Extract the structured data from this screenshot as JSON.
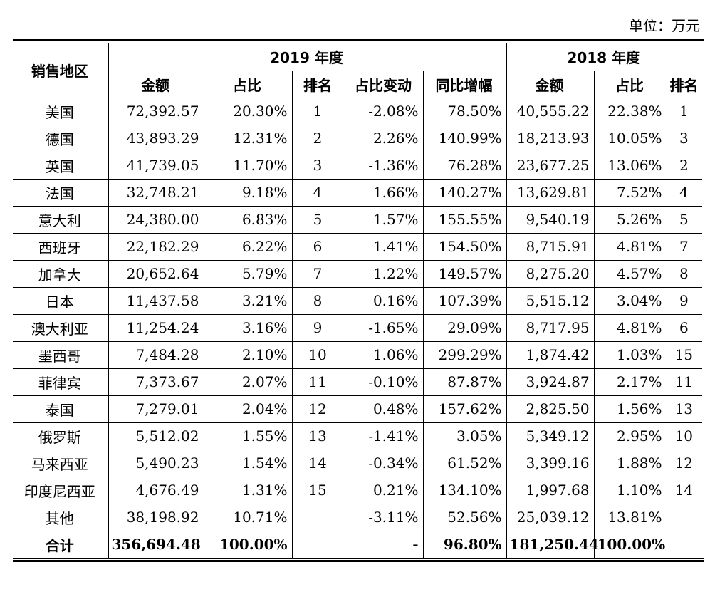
{
  "unit_label": "单位：万元",
  "header": {
    "region": "销售地区",
    "year_2019": "2019 年度",
    "year_2018": "2018 年度",
    "cols_2019": [
      "金额",
      "占比",
      "排名",
      "占比变动",
      "同比增幅"
    ],
    "cols_2018": [
      "金额",
      "占比",
      "排名"
    ]
  },
  "rows": [
    {
      "region": "美国",
      "amt19": "72,392.57",
      "pct19": "20.30%",
      "rank19": "1",
      "chg": "-2.08%",
      "yoy": "78.50%",
      "amt18": "40,555.22",
      "pct18": "22.38%",
      "rank18": "1"
    },
    {
      "region": "德国",
      "amt19": "43,893.29",
      "pct19": "12.31%",
      "rank19": "2",
      "chg": "2.26%",
      "yoy": "140.99%",
      "amt18": "18,213.93",
      "pct18": "10.05%",
      "rank18": "3"
    },
    {
      "region": "英国",
      "amt19": "41,739.05",
      "pct19": "11.70%",
      "rank19": "3",
      "chg": "-1.36%",
      "yoy": "76.28%",
      "amt18": "23,677.25",
      "pct18": "13.06%",
      "rank18": "2"
    },
    {
      "region": "法国",
      "amt19": "32,748.21",
      "pct19": "9.18%",
      "rank19": "4",
      "chg": "1.66%",
      "yoy": "140.27%",
      "amt18": "13,629.81",
      "pct18": "7.52%",
      "rank18": "4"
    },
    {
      "region": "意大利",
      "amt19": "24,380.00",
      "pct19": "6.83%",
      "rank19": "5",
      "chg": "1.57%",
      "yoy": "155.55%",
      "amt18": "9,540.19",
      "pct18": "5.26%",
      "rank18": "5"
    },
    {
      "region": "西班牙",
      "amt19": "22,182.29",
      "pct19": "6.22%",
      "rank19": "6",
      "chg": "1.41%",
      "yoy": "154.50%",
      "amt18": "8,715.91",
      "pct18": "4.81%",
      "rank18": "7"
    },
    {
      "region": "加拿大",
      "amt19": "20,652.64",
      "pct19": "5.79%",
      "rank19": "7",
      "chg": "1.22%",
      "yoy": "149.57%",
      "amt18": "8,275.20",
      "pct18": "4.57%",
      "rank18": "8"
    },
    {
      "region": "日本",
      "amt19": "11,437.58",
      "pct19": "3.21%",
      "rank19": "8",
      "chg": "0.16%",
      "yoy": "107.39%",
      "amt18": "5,515.12",
      "pct18": "3.04%",
      "rank18": "9"
    },
    {
      "region": "澳大利亚",
      "amt19": "11,254.24",
      "pct19": "3.16%",
      "rank19": "9",
      "chg": "-1.65%",
      "yoy": "29.09%",
      "amt18": "8,717.95",
      "pct18": "4.81%",
      "rank18": "6"
    },
    {
      "region": "墨西哥",
      "amt19": "7,484.28",
      "pct19": "2.10%",
      "rank19": "10",
      "chg": "1.06%",
      "yoy": "299.29%",
      "amt18": "1,874.42",
      "pct18": "1.03%",
      "rank18": "15"
    },
    {
      "region": "菲律宾",
      "amt19": "7,373.67",
      "pct19": "2.07%",
      "rank19": "11",
      "chg": "-0.10%",
      "yoy": "87.87%",
      "amt18": "3,924.87",
      "pct18": "2.17%",
      "rank18": "11"
    },
    {
      "region": "泰国",
      "amt19": "7,279.01",
      "pct19": "2.04%",
      "rank19": "12",
      "chg": "0.48%",
      "yoy": "157.62%",
      "amt18": "2,825.50",
      "pct18": "1.56%",
      "rank18": "13"
    },
    {
      "region": "俄罗斯",
      "amt19": "5,512.02",
      "pct19": "1.55%",
      "rank19": "13",
      "chg": "-1.41%",
      "yoy": "3.05%",
      "amt18": "5,349.12",
      "pct18": "2.95%",
      "rank18": "10"
    },
    {
      "region": "马来西亚",
      "amt19": "5,490.23",
      "pct19": "1.54%",
      "rank19": "14",
      "chg": "-0.34%",
      "yoy": "61.52%",
      "amt18": "3,399.16",
      "pct18": "1.88%",
      "rank18": "12"
    },
    {
      "region": "印度尼西亚",
      "amt19": "4,676.49",
      "pct19": "1.31%",
      "rank19": "15",
      "chg": "0.21%",
      "yoy": "134.10%",
      "amt18": "1,997.68",
      "pct18": "1.10%",
      "rank18": "14"
    },
    {
      "region": "其他",
      "amt19": "38,198.92",
      "pct19": "10.71%",
      "rank19": "",
      "chg": "-3.11%",
      "yoy": "52.56%",
      "amt18": "25,039.12",
      "pct18": "13.81%",
      "rank18": ""
    }
  ],
  "total": {
    "region": "合计",
    "amt19": "356,694.48",
    "pct19": "100.00%",
    "rank19": "",
    "chg": "-",
    "yoy": "96.80%",
    "amt18": "181,250.44",
    "pct18": "100.00%",
    "rank18": ""
  }
}
